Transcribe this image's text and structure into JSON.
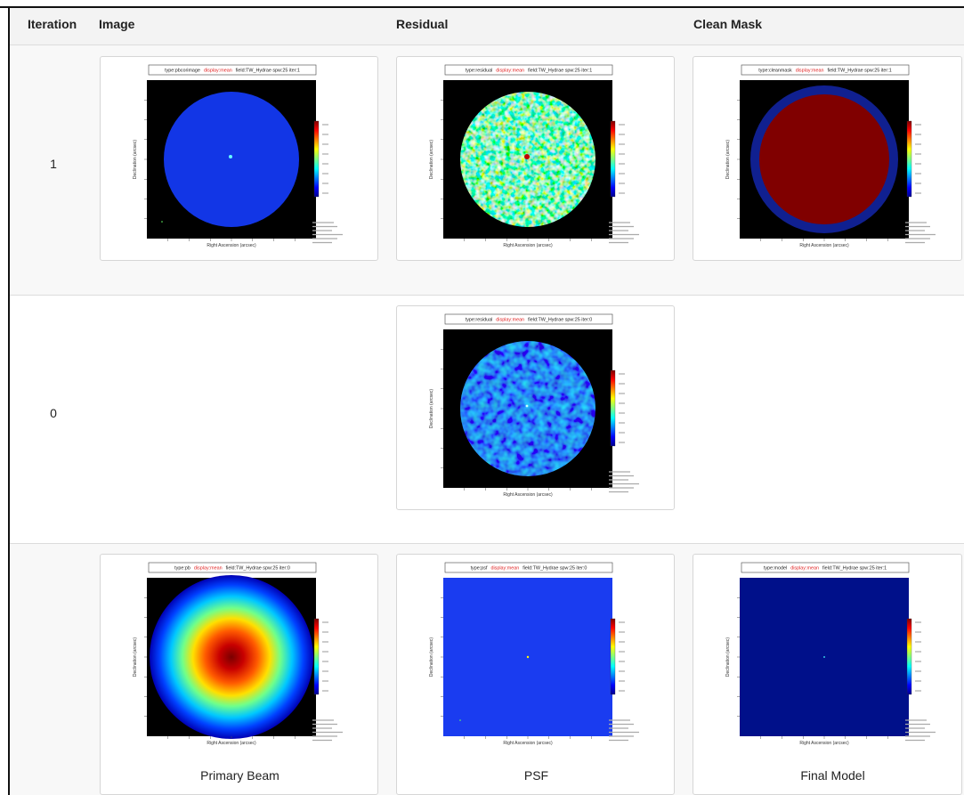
{
  "table": {
    "headers": [
      "Iteration",
      "Image",
      "Residual",
      "Clean Mask"
    ],
    "rows": [
      {
        "iteration": "1",
        "cells": [
          {
            "type_label": "type:pbcorimage",
            "display": "display:mean",
            "field": "field:TW_Hydrae  spw:25  iter:1",
            "x_label": "Right Ascension (arcsec)",
            "y_label": "Declination (arcsec)"
          },
          {
            "type_label": "type:residual",
            "display": "display:mean",
            "field": "field:TW_Hydrae  spw:25  iter:1",
            "x_label": "Right Ascension (arcsec)",
            "y_label": "Declination (arcsec)"
          },
          {
            "type_label": "type:cleanmask",
            "display": "display:mean",
            "field": "field:TW_Hydrae  spw:25  iter:1",
            "x_label": "Right Ascension (arcsec)",
            "y_label": "Declination (arcsec)"
          }
        ]
      },
      {
        "iteration": "0",
        "cells": [
          null,
          {
            "type_label": "type:residual",
            "display": "display:mean",
            "field": "field:TW_Hydrae  spw:25  iter:0",
            "x_label": "Right Ascension (arcsec)",
            "y_label": "Declination (arcsec)"
          },
          null
        ]
      },
      {
        "cells": [
          {
            "type_label": "type:pb",
            "display": "display:mean",
            "field": "field:TW_Hydrae  spw:25  iter:0",
            "x_label": "Right Ascension (arcsec)",
            "y_label": "Declination (arcsec)",
            "caption": "Primary Beam"
          },
          {
            "type_label": "type:psf",
            "display": "display:mean",
            "field": "field:TW_Hydrae  spw:25  iter:0",
            "x_label": "Right Ascension (arcsec)",
            "y_label": "Declination (arcsec)",
            "caption": "PSF"
          },
          {
            "type_label": "type:model",
            "display": "display:mean",
            "field": "field:TW_Hydrae  spw:25  iter:1",
            "x_label": "Right Ascension (arcsec)",
            "y_label": "Declination (arcsec)",
            "caption": "Final Model"
          }
        ]
      }
    ]
  }
}
